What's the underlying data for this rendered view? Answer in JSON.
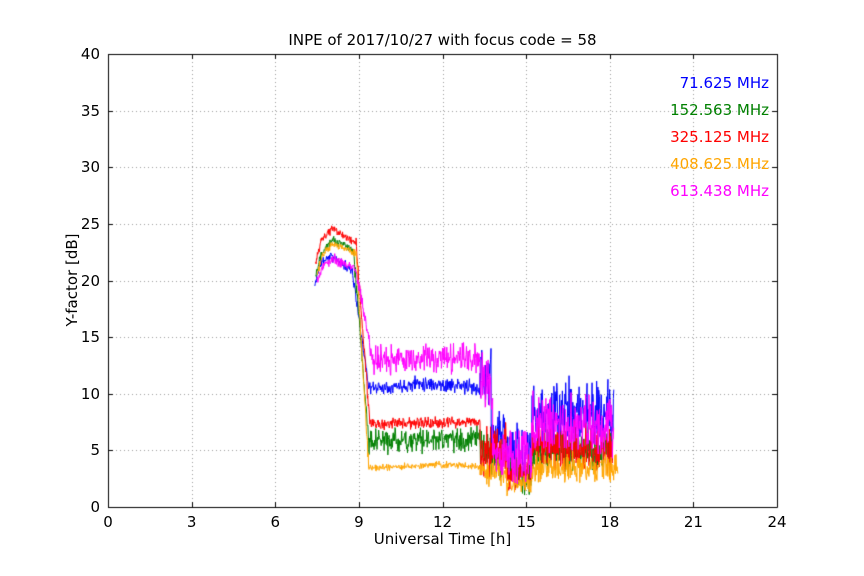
{
  "chart_data": {
    "type": "line",
    "title": "INPE of 2017/10/27 with focus code = 58",
    "xlabel": "Universal Time [h]",
    "ylabel": "Y-factor [dB]",
    "xlim": [
      0,
      24
    ],
    "ylim": [
      0,
      40
    ],
    "xticks": [
      0,
      3,
      6,
      9,
      12,
      15,
      18,
      21,
      24
    ],
    "yticks": [
      0,
      5,
      10,
      15,
      20,
      25,
      30,
      35,
      40
    ],
    "grid": true,
    "grid_style": "dotted",
    "grid_color": "#999999",
    "frame_color": "#000000",
    "background": "#ffffff",
    "legend_position": "upper right",
    "series": [
      {
        "name": "71.625 MHz",
        "color": "#0000ff",
        "seed": 11,
        "segments": [
          [
            7.42,
            7.6,
            19.5,
            21.5,
            0.4
          ],
          [
            7.6,
            8.05,
            21.5,
            22.3,
            0.5
          ],
          [
            8.05,
            8.75,
            22.0,
            21.0,
            0.5
          ],
          [
            8.75,
            9.35,
            21.0,
            10.8,
            0.6
          ],
          [
            9.35,
            11.0,
            10.5,
            10.8,
            0.7
          ],
          [
            11.0,
            13.35,
            11.0,
            10.5,
            0.8
          ],
          [
            13.35,
            13.75,
            11.5,
            11.5,
            3.2
          ],
          [
            13.75,
            14.3,
            6.0,
            6.0,
            3.0
          ],
          [
            14.3,
            15.2,
            5.0,
            5.0,
            3.0
          ],
          [
            15.2,
            16.3,
            8.0,
            8.0,
            3.5
          ],
          [
            16.3,
            18.15,
            8.5,
            8.0,
            3.5
          ]
        ]
      },
      {
        "name": "152.563 MHz",
        "color": "#008000",
        "seed": 22,
        "segments": [
          [
            7.45,
            7.65,
            20.5,
            22.5,
            0.5
          ],
          [
            7.65,
            8.1,
            22.5,
            23.8,
            0.5
          ],
          [
            8.1,
            8.8,
            23.5,
            22.8,
            0.5
          ],
          [
            8.8,
            9.35,
            22.8,
            6.0,
            0.8
          ],
          [
            9.35,
            13.35,
            5.8,
            6.0,
            1.3
          ],
          [
            13.35,
            14.3,
            4.5,
            4.5,
            2.5
          ],
          [
            14.3,
            15.2,
            3.0,
            3.0,
            2.0
          ],
          [
            15.2,
            18.1,
            5.0,
            5.0,
            2.5
          ]
        ]
      },
      {
        "name": "325.125 MHz",
        "color": "#ff0000",
        "seed": 33,
        "segments": [
          [
            7.45,
            7.65,
            21.5,
            23.5,
            0.5
          ],
          [
            7.65,
            8.1,
            23.5,
            24.7,
            0.4
          ],
          [
            8.1,
            8.9,
            24.5,
            23.3,
            0.4
          ],
          [
            8.9,
            9.4,
            23.3,
            7.2,
            0.8
          ],
          [
            9.4,
            13.35,
            7.3,
            7.5,
            0.6
          ],
          [
            13.35,
            14.3,
            5.0,
            5.0,
            2.5
          ],
          [
            14.3,
            15.2,
            3.0,
            3.0,
            2.0
          ],
          [
            15.2,
            18.1,
            5.5,
            5.0,
            2.5
          ]
        ]
      },
      {
        "name": "408.625 MHz",
        "color": "#ffa500",
        "seed": 44,
        "segments": [
          [
            7.5,
            7.7,
            20.5,
            22.3,
            0.5
          ],
          [
            7.7,
            8.1,
            22.3,
            23.3,
            0.4
          ],
          [
            8.1,
            8.9,
            23.2,
            22.4,
            0.4
          ],
          [
            8.9,
            9.35,
            22.4,
            3.6,
            0.6
          ],
          [
            9.35,
            11.5,
            3.4,
            3.7,
            0.35
          ],
          [
            11.5,
            13.35,
            3.8,
            3.6,
            0.35
          ],
          [
            13.35,
            14.3,
            3.0,
            3.0,
            1.5
          ],
          [
            14.3,
            15.2,
            2.0,
            2.0,
            1.2
          ],
          [
            15.2,
            18.3,
            3.5,
            3.5,
            1.5
          ]
        ]
      },
      {
        "name": "613.438 MHz",
        "color": "#ff00ff",
        "seed": 55,
        "segments": [
          [
            7.5,
            7.7,
            20.0,
            21.3,
            0.5
          ],
          [
            7.7,
            8.15,
            21.3,
            22.0,
            0.5
          ],
          [
            8.15,
            8.9,
            21.8,
            21.0,
            0.5
          ],
          [
            8.9,
            9.5,
            21.0,
            12.8,
            0.8
          ],
          [
            9.5,
            13.35,
            13.0,
            13.2,
            1.6
          ],
          [
            13.35,
            13.8,
            11.5,
            10.0,
            2.8
          ],
          [
            13.8,
            15.2,
            4.5,
            4.5,
            2.6
          ],
          [
            15.2,
            18.15,
            7.5,
            7.0,
            3.2
          ]
        ]
      }
    ]
  }
}
